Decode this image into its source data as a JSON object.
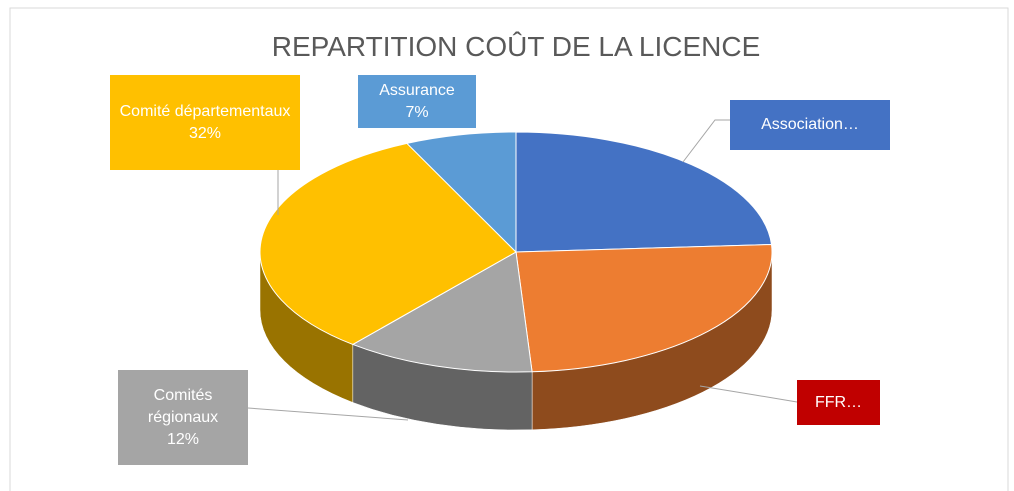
{
  "chart_data": {
    "type": "pie3d",
    "title": "REPARTITION COÛT DE LA LICENCE",
    "categories": [
      "Association…",
      "FFR…",
      "Comités régionaux",
      "Comité départementaux",
      "Assurance"
    ],
    "values": [
      24,
      25,
      12,
      32,
      7
    ],
    "value_labels": [
      null,
      null,
      "12%",
      "32%",
      "7%"
    ],
    "colors": [
      "#4472c4",
      "#ed7d31",
      "#a5a5a5",
      "#ffc000",
      "#5b9bd5"
    ],
    "label_colors": [
      "#4472c4",
      "#c00000",
      "#a5a5a5",
      "#ffc000",
      "#5b9bd5"
    ]
  }
}
